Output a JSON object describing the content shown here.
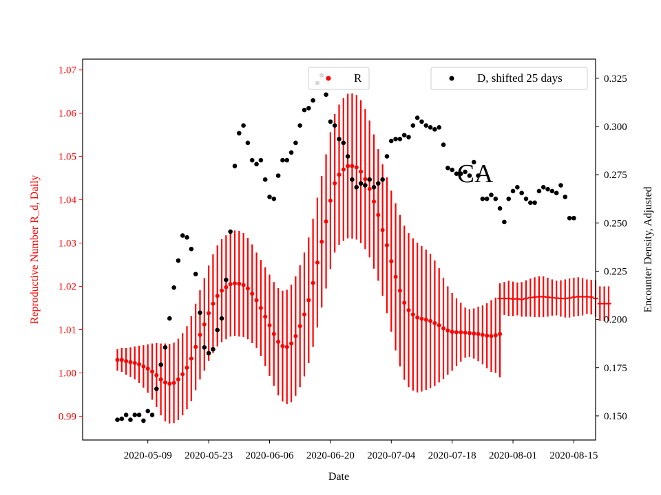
{
  "chart_data": {
    "type": "scatter",
    "xlabel": "Date",
    "ylabel_left": "Reproductive Number R_d, Daily",
    "ylabel_right": "Encounter Density, Adjusted",
    "annotation": "CA",
    "colors": {
      "left_axis": "#ff0000",
      "series_R": "#ff0000",
      "series_D": "#000000",
      "right_axis": "#000000"
    },
    "x_range": [
      "2020-04-24",
      "2020-08-20"
    ],
    "x_ticks": [
      "2020-05-09",
      "2020-05-23",
      "2020-06-06",
      "2020-06-20",
      "2020-07-04",
      "2020-07-18",
      "2020-08-01",
      "2020-08-15"
    ],
    "y_left_range": [
      0.9845,
      1.0725
    ],
    "y_left_ticks": [
      "0.99",
      "1.00",
      "1.01",
      "1.02",
      "1.03",
      "1.04",
      "1.05",
      "1.06",
      "1.07"
    ],
    "y_right_range": [
      0.1375,
      0.3349
    ],
    "y_right_ticks": [
      "0.150",
      "0.175",
      "0.200",
      "0.225",
      "0.250",
      "0.275",
      "0.300",
      "0.325"
    ],
    "legend_left": {
      "label": "R",
      "position": "top-center"
    },
    "legend_right": {
      "label": "D, shifted 25 days",
      "position": "top-right"
    },
    "series_R": {
      "name": "R",
      "start_date": "2020-05-02",
      "values": [
        1.003,
        1.003,
        1.0027,
        1.0025,
        1.0023,
        1.002,
        1.0015,
        1.001,
        1.0003,
        0.9995,
        0.9985,
        0.9978,
        0.9975,
        0.9977,
        0.9985,
        0.9997,
        1.0012,
        1.0033,
        1.006,
        1.0088,
        1.0112,
        1.0138,
        1.016,
        1.0178,
        1.019,
        1.0198,
        1.0205,
        1.0207,
        1.0206,
        1.0203,
        1.0195,
        1.0183,
        1.0168,
        1.015,
        1.013,
        1.011,
        1.009,
        1.0072,
        1.0062,
        1.006,
        1.0068,
        1.0085,
        1.0108,
        1.0135,
        1.0168,
        1.0208,
        1.0255,
        1.0303,
        1.035,
        1.0398,
        1.0438,
        1.0458,
        1.047,
        1.0478,
        1.0478,
        1.0475,
        1.0465,
        1.0448,
        1.0425,
        1.0396,
        1.0365,
        1.033,
        1.0295,
        1.0258,
        1.0222,
        1.019,
        1.0162,
        1.0145,
        1.0135,
        1.0128,
        1.0125,
        1.0123,
        1.012,
        1.0115,
        1.011,
        1.0103,
        1.0098,
        1.0095,
        1.0094,
        1.0094,
        1.0093,
        1.0092,
        1.0091,
        1.009,
        1.0088,
        1.0086,
        1.0085,
        1.0087,
        1.009
      ],
      "error": [
        0.0025,
        0.0028,
        0.0031,
        0.0034,
        0.0038,
        0.0043,
        0.0049,
        0.0056,
        0.0065,
        0.0074,
        0.0083,
        0.009,
        0.0092,
        0.0093,
        0.0094,
        0.0095,
        0.0096,
        0.0098,
        0.01,
        0.0103,
        0.0107,
        0.011,
        0.0114,
        0.0117,
        0.0119,
        0.012,
        0.0121,
        0.0122,
        0.0122,
        0.012,
        0.0117,
        0.0114,
        0.011,
        0.0111,
        0.0114,
        0.0117,
        0.012,
        0.0124,
        0.0128,
        0.0132,
        0.0136,
        0.0138,
        0.0141,
        0.0143,
        0.0145,
        0.0148,
        0.015,
        0.0152,
        0.0155,
        0.0158,
        0.016,
        0.0162,
        0.0165,
        0.0167,
        0.0168,
        0.0167,
        0.0165,
        0.0162,
        0.0158,
        0.0155,
        0.0152,
        0.0152,
        0.0157,
        0.0163,
        0.017,
        0.0175,
        0.0178,
        0.0178,
        0.0176,
        0.0173,
        0.0168,
        0.0162,
        0.0155,
        0.0145,
        0.0132,
        0.0117,
        0.0102,
        0.009,
        0.0078,
        0.0068,
        0.0058,
        0.0055,
        0.0058,
        0.0063,
        0.0068,
        0.0075,
        0.0083,
        0.0087,
        0.01
      ]
    },
    "series_R_tail": {
      "name": "R",
      "start_date": "2020-07-29",
      "values": [
        1.0172,
        1.0172,
        1.0172,
        1.0171,
        1.0171,
        1.017,
        1.0172,
        1.0174,
        1.0175,
        1.0176,
        1.0176,
        1.0175,
        1.0174,
        1.0173,
        1.0172,
        1.0172,
        1.0173,
        1.0175,
        1.0176,
        1.0176,
        1.0176,
        1.0175,
        1.0172,
        1.016,
        1.016,
        1.016
      ],
      "error": [
        0.0035,
        0.0038,
        0.0041,
        0.004,
        0.0038,
        0.004,
        0.0042,
        0.0044,
        0.0046,
        0.0047,
        0.0047,
        0.0045,
        0.0042,
        0.004,
        0.0042,
        0.0044,
        0.0045,
        0.0045,
        0.0045,
        0.0043,
        0.004,
        0.004,
        0.0042,
        0.004,
        0.004,
        0.004
      ]
    },
    "series_D": {
      "name": "D, shifted 25 days",
      "points": [
        [
          "2020-05-02",
          0.148
        ],
        [
          "2020-05-03",
          0.1485
        ],
        [
          "2020-05-04",
          0.1505
        ],
        [
          "2020-05-05",
          0.148
        ],
        [
          "2020-05-06",
          0.1505
        ],
        [
          "2020-05-07",
          0.1505
        ],
        [
          "2020-05-08",
          0.1475
        ],
        [
          "2020-05-09",
          0.1525
        ],
        [
          "2020-05-10",
          0.1505
        ],
        [
          "2020-05-11",
          0.164
        ],
        [
          "2020-05-12",
          0.1765
        ],
        [
          "2020-05-13",
          0.1855
        ],
        [
          "2020-05-14",
          0.2005
        ],
        [
          "2020-05-15",
          0.2165
        ],
        [
          "2020-05-16",
          0.2305
        ],
        [
          "2020-05-17",
          0.2435
        ],
        [
          "2020-05-18",
          0.2425
        ],
        [
          "2020-05-19",
          0.2365
        ],
        [
          "2020-05-20",
          0.2235
        ],
        [
          "2020-05-21",
          0.2035
        ],
        [
          "2020-05-22",
          0.1855
        ],
        [
          "2020-05-23",
          0.1825
        ],
        [
          "2020-05-24",
          0.1845
        ],
        [
          "2020-05-25",
          0.1945
        ],
        [
          "2020-05-26",
          0.2005
        ],
        [
          "2020-05-27",
          0.2205
        ],
        [
          "2020-05-28",
          0.2455
        ],
        [
          "2020-05-29",
          0.2795
        ],
        [
          "2020-05-30",
          0.2965
        ],
        [
          "2020-05-31",
          0.3005
        ],
        [
          "2020-06-01",
          0.2915
        ],
        [
          "2020-06-02",
          0.2825
        ],
        [
          "2020-06-03",
          0.2805
        ],
        [
          "2020-06-04",
          0.2825
        ],
        [
          "2020-06-05",
          0.2725
        ],
        [
          "2020-06-06",
          0.2635
        ],
        [
          "2020-06-07",
          0.2625
        ],
        [
          "2020-06-08",
          0.2745
        ],
        [
          "2020-06-09",
          0.2825
        ],
        [
          "2020-06-10",
          0.2825
        ],
        [
          "2020-06-11",
          0.2865
        ],
        [
          "2020-06-12",
          0.2915
        ],
        [
          "2020-06-13",
          0.3005
        ],
        [
          "2020-06-14",
          0.3085
        ],
        [
          "2020-06-15",
          0.3095
        ],
        [
          "2020-06-16",
          0.3135
        ],
        [
          "2020-06-17",
          0.3225
        ],
        [
          "2020-06-18",
          0.3265
        ],
        [
          "2020-06-19",
          0.3165
        ],
        [
          "2020-06-20",
          0.3025
        ],
        [
          "2020-06-21",
          0.3005
        ],
        [
          "2020-06-22",
          0.2935
        ],
        [
          "2020-06-23",
          0.2915
        ],
        [
          "2020-06-24",
          0.2845
        ],
        [
          "2020-06-25",
          0.2725
        ],
        [
          "2020-06-26",
          0.2685
        ],
        [
          "2020-06-27",
          0.2705
        ],
        [
          "2020-06-28",
          0.2695
        ],
        [
          "2020-06-29",
          0.2725
        ],
        [
          "2020-06-30",
          0.2685
        ],
        [
          "2020-07-01",
          0.2705
        ],
        [
          "2020-07-02",
          0.2725
        ],
        [
          "2020-07-03",
          0.2845
        ],
        [
          "2020-07-04",
          0.2925
        ],
        [
          "2020-07-05",
          0.2935
        ],
        [
          "2020-07-06",
          0.2935
        ],
        [
          "2020-07-07",
          0.2955
        ],
        [
          "2020-07-08",
          0.2945
        ],
        [
          "2020-07-09",
          0.3005
        ],
        [
          "2020-07-10",
          0.3045
        ],
        [
          "2020-07-11",
          0.3025
        ],
        [
          "2020-07-12",
          0.3005
        ],
        [
          "2020-07-13",
          0.2995
        ],
        [
          "2020-07-14",
          0.2985
        ],
        [
          "2020-07-15",
          0.2995
        ],
        [
          "2020-07-16",
          0.2905
        ],
        [
          "2020-07-17",
          0.2785
        ],
        [
          "2020-07-18",
          0.2775
        ],
        [
          "2020-07-19",
          0.2755
        ],
        [
          "2020-07-20",
          0.2755
        ],
        [
          "2020-07-21",
          0.2765
        ],
        [
          "2020-07-22",
          0.2745
        ],
        [
          "2020-07-23",
          0.2815
        ],
        [
          "2020-07-24",
          0.2745
        ],
        [
          "2020-07-25",
          0.2625
        ],
        [
          "2020-07-26",
          0.2625
        ],
        [
          "2020-07-27",
          0.2645
        ],
        [
          "2020-07-28",
          0.2625
        ],
        [
          "2020-07-29",
          0.2575
        ],
        [
          "2020-07-30",
          0.2505
        ],
        [
          "2020-07-31",
          0.2625
        ],
        [
          "2020-08-01",
          0.2665
        ],
        [
          "2020-08-02",
          0.2685
        ],
        [
          "2020-08-03",
          0.2655
        ],
        [
          "2020-08-04",
          0.2625
        ],
        [
          "2020-08-05",
          0.2605
        ],
        [
          "2020-08-06",
          0.2605
        ],
        [
          "2020-08-07",
          0.2665
        ],
        [
          "2020-08-08",
          0.2685
        ],
        [
          "2020-08-09",
          0.2675
        ],
        [
          "2020-08-10",
          0.2665
        ],
        [
          "2020-08-11",
          0.2655
        ],
        [
          "2020-08-12",
          0.2695
        ],
        [
          "2020-08-13",
          0.2635
        ],
        [
          "2020-08-14",
          0.2525
        ],
        [
          "2020-08-15",
          0.2525
        ]
      ]
    }
  }
}
